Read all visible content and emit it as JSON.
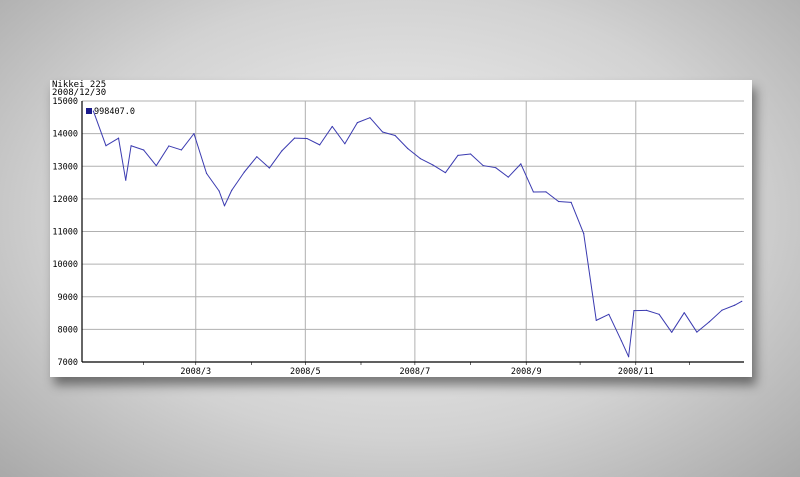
{
  "header": {
    "title": "Nikkei 225",
    "date": "2008/12/30"
  },
  "chart_data": {
    "type": "line",
    "title": "Nikkei 225",
    "subtitle": "2008/12/30",
    "xlabel": "",
    "ylabel": "",
    "ylim": [
      7000,
      15000
    ],
    "yticks": [
      7000,
      8000,
      9000,
      10000,
      11000,
      12000,
      13000,
      14000,
      15000
    ],
    "xticks": [
      "2008/3",
      "2008/5",
      "2008/7",
      "2008/9",
      "2008/11"
    ],
    "grid": true,
    "legend": {
      "placement": "top-left",
      "entries": [
        "998407.0"
      ]
    },
    "colors": {
      "series": "#3a3ab0",
      "legend_marker": "#1a1a8c",
      "grid": "#b0b0b0"
    },
    "series": [
      {
        "name": "998407.0",
        "x": [
          "2008-01-04",
          "2008-01-11",
          "2008-01-18",
          "2008-01-22",
          "2008-01-25",
          "2008-02-01",
          "2008-02-08",
          "2008-02-15",
          "2008-02-22",
          "2008-02-29",
          "2008-03-07",
          "2008-03-14",
          "2008-03-17",
          "2008-03-21",
          "2008-03-28",
          "2008-04-04",
          "2008-04-11",
          "2008-04-18",
          "2008-04-25",
          "2008-05-02",
          "2008-05-09",
          "2008-05-16",
          "2008-05-23",
          "2008-05-30",
          "2008-06-06",
          "2008-06-13",
          "2008-06-20",
          "2008-06-27",
          "2008-07-04",
          "2008-07-11",
          "2008-07-18",
          "2008-07-25",
          "2008-08-01",
          "2008-08-08",
          "2008-08-15",
          "2008-08-22",
          "2008-08-29",
          "2008-09-05",
          "2008-09-12",
          "2008-09-19",
          "2008-09-26",
          "2008-10-03",
          "2008-10-10",
          "2008-10-17",
          "2008-10-24",
          "2008-10-28",
          "2008-10-31",
          "2008-11-07",
          "2008-11-14",
          "2008-11-21",
          "2008-11-28",
          "2008-12-05",
          "2008-12-12",
          "2008-12-19",
          "2008-12-26",
          "2008-12-30"
        ],
        "y": [
          14691,
          13629,
          13861,
          12573,
          13629,
          13497,
          13017,
          13622,
          13500,
          14000,
          12782,
          12241,
          11787,
          12260,
          12820,
          13293,
          12945,
          13476,
          13863,
          13849,
          13655,
          14220,
          13690,
          14338,
          14489,
          14051,
          13942,
          13544,
          13237,
          13039,
          12803,
          13334,
          13376,
          13021,
          12956,
          12666,
          13072,
          12212,
          12215,
          11920,
          11893,
          10938,
          8276,
          8462,
          7649,
          7162,
          8576,
          8583,
          8462,
          7910,
          8512,
          7917,
          8235,
          8588,
          8739,
          8859
        ]
      }
    ]
  }
}
